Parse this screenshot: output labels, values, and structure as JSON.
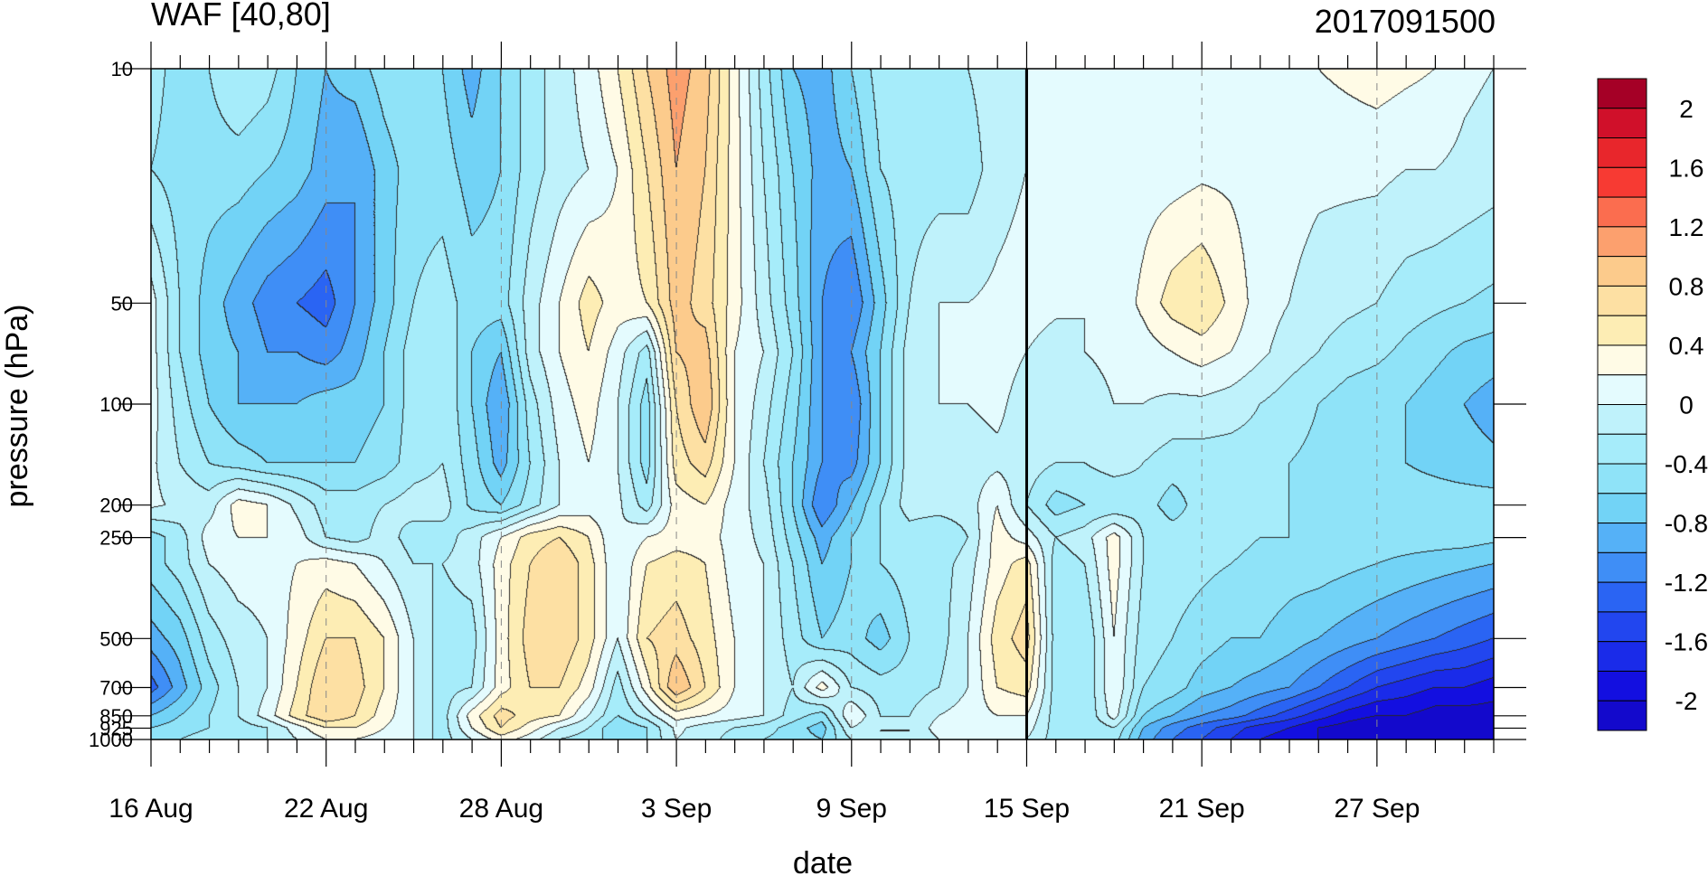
{
  "chart_data": {
    "type": "heatmap",
    "title_left": "WAF [40,80]",
    "title_right": "2017091500",
    "xlabel": "date",
    "ylabel": "pressure (hPa)",
    "x_tick_labels": [
      "16 Aug",
      "22 Aug",
      "28 Aug",
      "3 Sep",
      "9 Sep",
      "15 Sep",
      "21 Sep",
      "27 Sep"
    ],
    "x_range": [
      "2017-08-16",
      "2017-10-01"
    ],
    "y_scale": "log",
    "y_ticks": [
      10,
      50,
      100,
      200,
      250,
      500,
      700,
      850,
      925,
      1000
    ],
    "y_tick_labels": [
      "10",
      "50",
      "100",
      "200",
      "250",
      "500",
      "700",
      "850",
      "925",
      "1000"
    ],
    "y_range": [
      1000,
      10
    ],
    "marker_date": "2017-09-15",
    "colorbar_levels": [
      -2.2,
      -2,
      -1.8,
      -1.6,
      -1.4,
      -1.2,
      -1,
      -0.8,
      -0.6,
      -0.4,
      -0.2,
      0,
      0.2,
      0.4,
      0.6,
      0.8,
      1,
      1.2,
      1.4,
      1.6,
      1.8,
      2,
      2.2
    ],
    "colorbar_labels": [
      "2",
      "1.6",
      "1.2",
      "0.8",
      "0.4",
      "0",
      "-0.4",
      "-0.8",
      "-1.2",
      "-1.6",
      "-2"
    ],
    "colorbar_colors": [
      "#a50026",
      "#d0102a",
      "#e8262c",
      "#f73a33",
      "#fb6d4f",
      "#fca06e",
      "#fccb8c",
      "#fde0a3",
      "#fdedb4",
      "#fffbe6",
      "#e4fbfe",
      "#bff2fb",
      "#a6ecfa",
      "#8fe3f8",
      "#72d3f6",
      "#55b1f7",
      "#3f8ef6",
      "#2a64f3",
      "#2246ef",
      "#1a2be9",
      "#130fe0",
      "#1309cc"
    ],
    "grid_x": [
      0,
      6,
      12,
      18,
      24,
      30,
      36,
      42
    ],
    "grid_p": [
      10,
      20,
      50,
      70,
      100,
      150,
      200,
      250,
      300,
      500,
      700,
      850,
      925,
      1000
    ],
    "values": [
      [
        -0.3,
        -0.5,
        -0.4,
        -0.2,
        -0.3,
        -0.6,
        -0.8,
        -0.7,
        -0.5,
        -0.4,
        -0.6,
        -0.9,
        -0.6,
        -0.3,
        -0.1,
        0.1,
        0.4,
        0.8,
        1.1,
        0.9,
        0.3,
        -0.3,
        -0.8,
        -0.9,
        -0.6,
        -0.3,
        -0.3,
        -0.3,
        -0.2,
        -0.1,
        0.0,
        0.0,
        0.0,
        0.0,
        0.05,
        0.1,
        0.1,
        0.1,
        0.1,
        0.2,
        0.2,
        0.25,
        0.3,
        0.25,
        0.2,
        0.05,
        0.0
      ],
      [
        -0.4,
        -0.5,
        -0.5,
        -0.5,
        -0.6,
        -0.7,
        -0.9,
        -1.0,
        -0.7,
        -0.5,
        -0.5,
        -0.7,
        -0.6,
        -0.3,
        -0.1,
        0.0,
        0.2,
        0.6,
        1.0,
        0.8,
        0.3,
        -0.2,
        -0.6,
        -0.9,
        -0.8,
        -0.4,
        -0.3,
        -0.3,
        -0.3,
        -0.1,
        0.0,
        0.0,
        0.0,
        0.05,
        0.1,
        0.1,
        0.15,
        0.15,
        0.1,
        0.1,
        0.05,
        0.05,
        0.05,
        0.0,
        0.0,
        -0.05,
        -0.1
      ],
      [
        0.1,
        -0.4,
        -0.7,
        -0.9,
        -1.1,
        -1.2,
        -1.3,
        -1.0,
        -0.7,
        -0.4,
        -0.3,
        -0.5,
        -0.5,
        -0.1,
        0.2,
        0.5,
        0.3,
        0.4,
        0.9,
        0.7,
        0.3,
        -0.1,
        -0.5,
        -1.0,
        -1.2,
        -0.7,
        -0.2,
        0.0,
        0.0,
        0.05,
        0.1,
        0.05,
        0.0,
        0.05,
        0.25,
        0.5,
        0.6,
        0.35,
        0.1,
        0.0,
        -0.1,
        -0.15,
        -0.2,
        -0.3,
        -0.35,
        -0.4,
        -0.45
      ],
      [
        0.1,
        -0.4,
        -0.7,
        -0.8,
        -1.0,
        -1.0,
        -1.1,
        -0.9,
        -0.6,
        -0.3,
        -0.2,
        -0.6,
        -0.8,
        -0.1,
        0.2,
        0.4,
        0.1,
        -0.3,
        0.8,
        0.9,
        0.2,
        0.0,
        -0.4,
        -1.0,
        -1.0,
        -0.6,
        -0.1,
        0.0,
        0.0,
        0.1,
        0.0,
        -0.1,
        0.0,
        0.05,
        0.1,
        0.2,
        0.3,
        0.2,
        0.05,
        -0.1,
        -0.2,
        -0.3,
        -0.35,
        -0.45,
        -0.55,
        -0.65,
        -0.7
      ],
      [
        0.1,
        -0.3,
        -0.6,
        -0.8,
        -0.8,
        -0.8,
        -0.7,
        -0.7,
        -0.6,
        -0.3,
        -0.2,
        -0.6,
        -1.0,
        -0.3,
        0.1,
        0.3,
        0.0,
        -0.5,
        0.6,
        1.0,
        0.2,
        -0.1,
        -0.5,
        -1.0,
        -1.2,
        -0.6,
        -0.1,
        0.0,
        0.0,
        0.05,
        -0.1,
        -0.2,
        -0.1,
        0.0,
        0.0,
        -0.05,
        -0.05,
        -0.1,
        -0.2,
        -0.3,
        -0.4,
        -0.5,
        -0.55,
        -0.6,
        -0.7,
        -0.8,
        -0.9
      ],
      [
        0.05,
        -0.2,
        -0.4,
        -0.5,
        -0.6,
        -0.6,
        -0.6,
        -0.6,
        -0.5,
        -0.3,
        -0.2,
        -0.5,
        -0.9,
        -0.4,
        0.0,
        0.2,
        0.0,
        -0.5,
        0.5,
        0.7,
        0.2,
        -0.2,
        -0.6,
        -1.0,
        -1.1,
        -0.6,
        -0.1,
        -0.05,
        -0.1,
        -0.05,
        -0.1,
        -0.2,
        -0.2,
        -0.1,
        -0.2,
        -0.3,
        -0.3,
        -0.3,
        -0.3,
        -0.4,
        -0.45,
        -0.5,
        -0.55,
        -0.6,
        -0.65,
        -0.7,
        -0.75
      ],
      [
        0.05,
        -0.05,
        -0.1,
        0.3,
        0.2,
        -0.05,
        -0.3,
        -0.3,
        -0.2,
        -0.1,
        -0.1,
        -0.45,
        -0.6,
        -0.3,
        0.0,
        0.1,
        0.05,
        -0.3,
        0.3,
        0.4,
        0.1,
        -0.1,
        -0.6,
        -1.2,
        -0.8,
        -0.4,
        -0.1,
        -0.1,
        -0.1,
        0.2,
        -0.2,
        -0.5,
        -0.4,
        -0.4,
        -0.3,
        -0.5,
        -0.3,
        -0.3,
        -0.3,
        -0.4,
        -0.45,
        -0.5,
        -0.5,
        -0.5,
        -0.5,
        -0.5,
        -0.5
      ],
      [
        -0.5,
        -0.3,
        0.1,
        0.2,
        0.2,
        0.1,
        -0.2,
        -0.3,
        -0.1,
        -0.3,
        -0.3,
        -0.1,
        0.2,
        0.5,
        0.6,
        0.4,
        0.0,
        0.2,
        0.3,
        0.3,
        0.1,
        -0.05,
        -0.5,
        -0.9,
        -0.6,
        -0.4,
        -0.3,
        -0.4,
        -0.2,
        0.3,
        0.1,
        -0.2,
        -0.1,
        0.3,
        -0.2,
        -0.3,
        -0.3,
        -0.35,
        -0.4,
        -0.4,
        -0.45,
        -0.5,
        -0.5,
        -0.5,
        -0.5,
        -0.5,
        -0.55
      ],
      [
        -0.5,
        -0.3,
        0.0,
        0.1,
        0.1,
        0.2,
        0.3,
        0.2,
        0.0,
        -0.2,
        -0.2,
        -0.1,
        0.3,
        0.6,
        0.8,
        0.5,
        0.0,
        0.4,
        0.5,
        0.4,
        0.1,
        0.0,
        -0.4,
        -0.8,
        -0.6,
        -0.4,
        -0.3,
        -0.3,
        -0.1,
        0.3,
        0.5,
        -0.3,
        -0.2,
        0.3,
        -0.2,
        -0.3,
        -0.35,
        -0.4,
        -0.45,
        -0.5,
        -0.5,
        -0.55,
        -0.6,
        -0.65,
        -0.7,
        -0.75,
        -0.8
      ],
      [
        -0.9,
        -0.7,
        -0.3,
        -0.1,
        0.0,
        0.3,
        0.6,
        0.6,
        0.4,
        0.0,
        -0.3,
        -0.3,
        0.3,
        0.7,
        0.8,
        0.5,
        0.0,
        0.6,
        0.7,
        0.5,
        0.2,
        0.0,
        -0.3,
        -0.6,
        -0.5,
        -0.7,
        -0.4,
        -0.3,
        0.0,
        0.5,
        0.7,
        -0.3,
        -0.4,
        0.2,
        -0.3,
        -0.4,
        -0.5,
        -0.6,
        -0.6,
        -0.7,
        -0.8,
        -0.9,
        -1.0,
        -1.1,
        -1.2,
        -1.3,
        -1.4
      ],
      [
        -1.3,
        -0.9,
        -0.5,
        -0.2,
        0.0,
        0.4,
        0.8,
        0.7,
        0.4,
        0.0,
        -0.3,
        -0.2,
        0.3,
        0.6,
        0.6,
        0.3,
        -0.3,
        0.3,
        1.0,
        0.6,
        0.2,
        0.0,
        -0.2,
        0.3,
        -0.2,
        -0.3,
        -0.3,
        -0.2,
        0.0,
        0.4,
        0.5,
        -0.3,
        -0.4,
        0.2,
        -0.4,
        -0.5,
        -0.7,
        -0.8,
        -0.9,
        -1.0,
        -1.2,
        -1.4,
        -1.6,
        -1.7,
        -1.8,
        -1.8,
        -1.9
      ],
      [
        -0.8,
        -0.6,
        -0.4,
        -0.2,
        0.1,
        0.5,
        0.8,
        0.6,
        0.3,
        0.0,
        -0.3,
        0.3,
        0.7,
        0.5,
        0.4,
        0.0,
        -0.4,
        -0.1,
        0.3,
        0.2,
        0.1,
        0.0,
        -0.3,
        -0.5,
        0.2,
        -0.2,
        -0.2,
        0.0,
        0.1,
        0.2,
        0.2,
        -0.3,
        -0.4,
        0.1,
        -0.6,
        -0.8,
        -1.0,
        -1.1,
        -1.3,
        -1.5,
        -1.7,
        -1.9,
        -2.0,
        -2.0,
        -2.1,
        -2.1,
        -2.1
      ],
      [
        -0.6,
        -0.5,
        -0.4,
        -0.3,
        -0.2,
        0.1,
        0.4,
        0.4,
        0.2,
        0.0,
        -0.3,
        0.2,
        0.6,
        0.3,
        0.0,
        -0.2,
        -0.6,
        -0.4,
        0.05,
        -0.1,
        -0.2,
        -0.3,
        -0.5,
        -0.7,
        0.0,
        -0.2,
        -0.2,
        0.1,
        0.2,
        0.2,
        0.1,
        -0.3,
        -0.4,
        -0.2,
        -0.8,
        -1.1,
        -1.3,
        -1.5,
        -1.7,
        -1.8,
        -2.0,
        -2.1,
        -2.2,
        -2.2,
        -2.2,
        -2.2,
        -2.2
      ],
      [
        -0.5,
        -0.4,
        -0.3,
        -0.3,
        -0.2,
        0.0,
        0.2,
        0.2,
        0.1,
        0.0,
        -0.3,
        0.0,
        0.3,
        0.1,
        -0.2,
        -0.3,
        -0.5,
        -0.4,
        0.0,
        -0.1,
        -0.3,
        -0.4,
        -0.5,
        -0.6,
        -0.2,
        -0.2,
        -0.2,
        0.0,
        0.1,
        0.1,
        0.0,
        -0.3,
        -0.4,
        -0.3,
        -0.9,
        -1.2,
        -1.4,
        -1.6,
        -1.8,
        -1.9,
        -2.0,
        -2.1,
        -2.2,
        -2.2,
        -2.2,
        -2.2,
        -2.2
      ]
    ]
  }
}
